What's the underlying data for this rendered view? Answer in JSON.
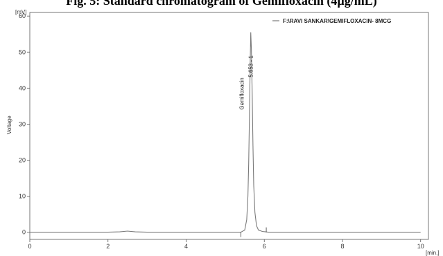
{
  "chart_data": {
    "type": "line",
    "title": "Fig. 5: Standard chromatogram of Gemifloxacin (4µg/mL)",
    "xlabel": "",
    "x_unit": "[min.]",
    "ylabel": "Voltage",
    "y_unit": "[mV]",
    "xlim": [
      0,
      10.2
    ],
    "ylim": [
      -2,
      61
    ],
    "x_ticks": [
      0,
      2,
      4,
      6,
      8,
      10
    ],
    "y_ticks": [
      0,
      10,
      20,
      30,
      40,
      50,
      60
    ],
    "grid": false,
    "legend_position": "top-right",
    "series": [
      {
        "name": "F:\\RAVI SANKAR\\GEMIFLOXACIN- 8MCG",
        "color": "#7a7a7a",
        "x": [
          0,
          1.0,
          2.0,
          2.3,
          2.5,
          2.7,
          3.0,
          4.0,
          5.0,
          5.4,
          5.5,
          5.55,
          5.58,
          5.6,
          5.62,
          5.64,
          5.653,
          5.67,
          5.69,
          5.71,
          5.73,
          5.76,
          5.8,
          5.85,
          5.95,
          6.1,
          7.0,
          8.0,
          9.0,
          10.0
        ],
        "y": [
          0,
          0,
          0,
          0.1,
          0.3,
          0.1,
          0,
          0,
          0,
          0,
          0.6,
          3.5,
          10,
          19,
          32,
          47,
          55.5,
          51,
          38,
          24,
          13,
          5.5,
          1.8,
          0.6,
          0.2,
          0,
          0,
          0,
          0,
          0
        ]
      }
    ],
    "annotations": [
      {
        "text": "5.653 - 1",
        "x": 5.653
      },
      {
        "text": "Gemifloxacin",
        "x": 5.653
      }
    ],
    "baseline_marks_x": [
      5.4,
      6.05
    ]
  }
}
